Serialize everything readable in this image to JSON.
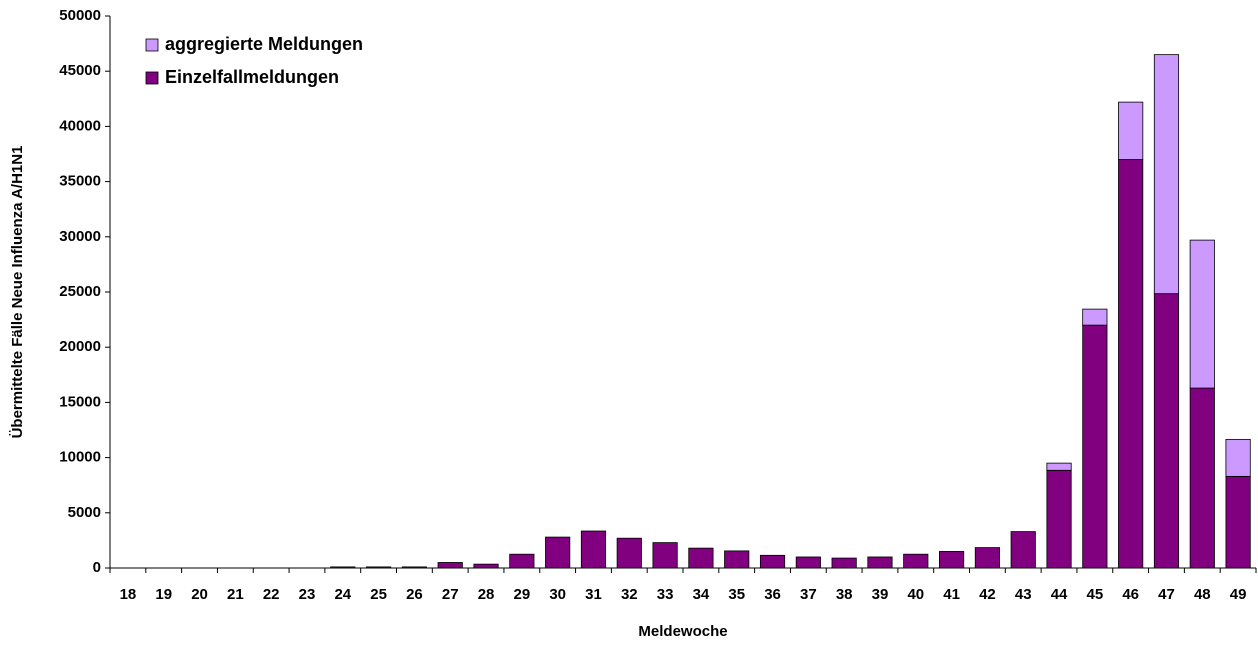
{
  "chart_data": {
    "type": "stacked-bar",
    "x_label": "Meldewoche",
    "y_label": "Übermittelte Fälle Neue Influenza A/H1N1",
    "categories": [
      "18",
      "19",
      "20",
      "21",
      "22",
      "23",
      "24",
      "25",
      "26",
      "27",
      "28",
      "29",
      "30",
      "31",
      "32",
      "33",
      "34",
      "35",
      "36",
      "37",
      "38",
      "39",
      "40",
      "41",
      "42",
      "43",
      "44",
      "45",
      "46",
      "47",
      "48",
      "49"
    ],
    "series": [
      {
        "name": "Einzelfallmeldungen",
        "color": "#800080",
        "values": [
          0,
          0,
          0,
          0,
          0,
          0,
          100,
          100,
          100,
          500,
          350,
          1250,
          2800,
          3350,
          2700,
          2300,
          1800,
          1550,
          1150,
          1000,
          900,
          1000,
          1250,
          1500,
          1850,
          3300,
          8850,
          22000,
          37000,
          24850,
          16300,
          8300
        ]
      },
      {
        "name": "aggregierte Meldungen",
        "color": "#cc99ff",
        "values": [
          0,
          0,
          0,
          0,
          0,
          0,
          0,
          0,
          0,
          0,
          0,
          0,
          0,
          0,
          0,
          0,
          0,
          0,
          0,
          0,
          0,
          0,
          0,
          0,
          0,
          0,
          650,
          1450,
          5200,
          21650,
          13400,
          3350
        ]
      }
    ],
    "ylim": [
      0,
      50000
    ],
    "yticks": [
      0,
      5000,
      10000,
      15000,
      20000,
      25000,
      30000,
      35000,
      40000,
      45000,
      50000
    ],
    "legend": "top-left",
    "grid": false
  }
}
